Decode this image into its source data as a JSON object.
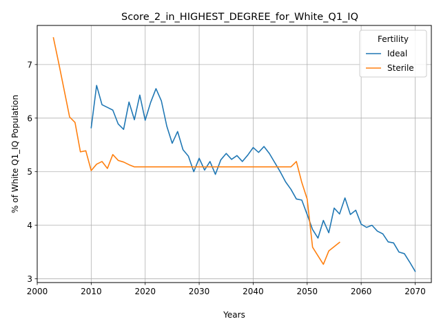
{
  "chart_data": {
    "type": "line",
    "title": "Score_2_in_HIGHEST_DEGREE_for_White_Q1_IQ",
    "xlabel": "Years",
    "ylabel": "% of White Q1_IQ Population",
    "xlim": [
      2000,
      2073
    ],
    "ylim": [
      2.93,
      7.73
    ],
    "xticks": [
      2000,
      2010,
      2020,
      2030,
      2040,
      2050,
      2060,
      2070
    ],
    "yticks": [
      3,
      4,
      5,
      6,
      7
    ],
    "grid": true,
    "legend": {
      "title": "Fertility",
      "position": "top-right"
    },
    "series": [
      {
        "name": "Ideal",
        "color": "#1f77b4",
        "x": [
          2010,
          2011,
          2012,
          2013,
          2014,
          2015,
          2016,
          2017,
          2018,
          2019,
          2020,
          2021,
          2022,
          2023,
          2024,
          2025,
          2026,
          2027,
          2028,
          2029,
          2030,
          2031,
          2032,
          2033,
          2034,
          2035,
          2036,
          2037,
          2038,
          2039,
          2040,
          2041,
          2042,
          2043,
          2044,
          2045,
          2046,
          2047,
          2048,
          2049,
          2050,
          2051,
          2052,
          2053,
          2054,
          2055,
          2056,
          2057,
          2058,
          2059,
          2060,
          2061,
          2062,
          2063,
          2064,
          2065,
          2066,
          2067,
          2068,
          2069,
          2070
        ],
        "y": [
          5.82,
          6.61,
          6.25,
          6.2,
          6.15,
          5.89,
          5.79,
          6.3,
          5.97,
          6.43,
          5.96,
          6.29,
          6.55,
          6.32,
          5.85,
          5.53,
          5.75,
          5.41,
          5.29,
          5.0,
          5.25,
          5.03,
          5.19,
          4.95,
          5.22,
          5.34,
          5.23,
          5.3,
          5.19,
          5.31,
          5.45,
          5.36,
          5.47,
          5.34,
          5.17,
          5.0,
          4.81,
          4.67,
          4.49,
          4.47,
          4.2,
          3.92,
          3.76,
          4.09,
          3.86,
          4.32,
          4.21,
          4.51,
          4.2,
          4.28,
          4.02,
          3.96,
          4.0,
          3.89,
          3.84,
          3.69,
          3.67,
          3.5,
          3.47,
          3.31,
          3.14
        ]
      },
      {
        "name": "Sterile",
        "color": "#ff7f0e",
        "x": [
          2003,
          2004,
          2005,
          2006,
          2007,
          2008,
          2009,
          2010,
          2011,
          2012,
          2013,
          2014,
          2015,
          2016,
          2017,
          2018,
          2019,
          2020,
          2021,
          2022,
          2023,
          2024,
          2025,
          2026,
          2027,
          2028,
          2029,
          2030,
          2031,
          2032,
          2033,
          2034,
          2035,
          2036,
          2037,
          2038,
          2039,
          2040,
          2041,
          2042,
          2043,
          2044,
          2045,
          2046,
          2047,
          2048,
          2049,
          2050,
          2051,
          2052,
          2053,
          2054,
          2055,
          2056
        ],
        "y": [
          7.5,
          7.02,
          6.52,
          6.02,
          5.92,
          5.37,
          5.39,
          5.02,
          5.14,
          5.19,
          5.06,
          5.32,
          5.21,
          5.18,
          5.13,
          5.09,
          5.09,
          5.09,
          5.09,
          5.09,
          5.09,
          5.09,
          5.09,
          5.09,
          5.09,
          5.09,
          5.09,
          5.09,
          5.09,
          5.09,
          5.09,
          5.09,
          5.09,
          5.09,
          5.09,
          5.09,
          5.09,
          5.09,
          5.09,
          5.09,
          5.09,
          5.09,
          5.09,
          5.09,
          5.09,
          5.19,
          4.8,
          4.49,
          3.59,
          3.43,
          3.27,
          3.52,
          3.6,
          3.68
        ]
      }
    ]
  }
}
